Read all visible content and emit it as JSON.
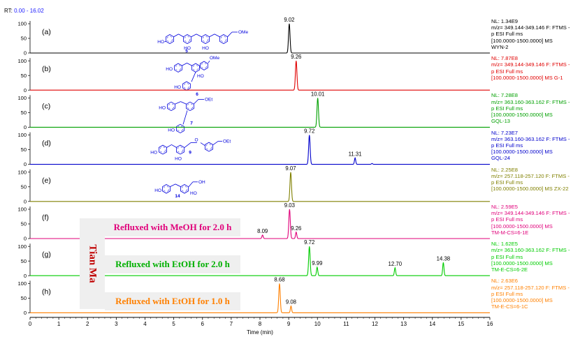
{
  "rt_header": {
    "label": "RT:",
    "range": "0.00 - 16.02"
  },
  "chart_data": {
    "type": "line",
    "xlabel": "Time (min)",
    "xlim": [
      0,
      16
    ],
    "x_ticks": [
      0,
      1,
      2,
      3,
      4,
      5,
      6,
      7,
      8,
      9,
      10,
      11,
      12,
      13,
      14,
      15,
      16
    ],
    "y_ticks": [
      0,
      50,
      100
    ],
    "panels": [
      {
        "label": "(a)",
        "color": "#000000",
        "info": [
          "NL: 1.34E9",
          "m/z= 349.144-349.146 F: FTMS -",
          "p ESI Full ms",
          "[100.0000-1500.0000]  MS",
          "WYN-2"
        ],
        "peaks": [
          {
            "rt": 9.02,
            "height": 100,
            "label": "9.02"
          }
        ]
      },
      {
        "label": "(b)",
        "color": "#e00000",
        "info": [
          "NL: 7.87E8",
          "m/z= 349.144-349.146 F: FTMS -",
          "p ESI Full ms",
          "[100.0000-1500.0000]  MS G-1"
        ],
        "peaks": [
          {
            "rt": 9.26,
            "height": 100,
            "label": "9.26"
          }
        ]
      },
      {
        "label": "(c)",
        "color": "#00a000",
        "info": [
          "NL: 7.28E8",
          "m/z= 363.160-363.162 F: FTMS -",
          "p ESI Full ms",
          "[100.0000-1500.0000]  MS",
          "GQL-13"
        ],
        "peaks": [
          {
            "rt": 10.01,
            "height": 100,
            "label": "10.01"
          }
        ]
      },
      {
        "label": "(d)",
        "color": "#0000cc",
        "info": [
          "NL: 7.23E7",
          "m/z= 363.160-363.162 F: FTMS -",
          "p ESI Full ms",
          "[100.0000-1500.0000]  MS",
          "GQL-24"
        ],
        "peaks": [
          {
            "rt": 9.72,
            "height": 100,
            "label": "9.72"
          },
          {
            "rt": 11.31,
            "height": 22,
            "label": "11.31"
          },
          {
            "rt": 11.9,
            "height": 3,
            "label": ""
          }
        ]
      },
      {
        "label": "(e)",
        "color": "#808000",
        "info": [
          "NL: 2.25E8",
          "m/z= 257.118-257.120 F: FTMS -",
          "p ESI Full ms",
          "[100.0000-1500.0000]  MS ZX-22"
        ],
        "peaks": [
          {
            "rt": 9.07,
            "height": 100,
            "label": "9.07"
          }
        ]
      },
      {
        "label": "(f)",
        "color": "#e0007a",
        "info": [
          "NL: 2.59E5",
          "m/z= 349.144-349.146 F: FTMS -",
          "p ESI Full ms",
          "[100.0000-1500.0000]  MS",
          "TM-M-CS=6-1E"
        ],
        "peaks": [
          {
            "rt": 8.09,
            "height": 12,
            "label": "8.09"
          },
          {
            "rt": 9.03,
            "height": 100,
            "label": "9.03"
          },
          {
            "rt": 9.26,
            "height": 22,
            "label": "9.26"
          }
        ]
      },
      {
        "label": "(g)",
        "color": "#00cc00",
        "info": [
          "NL: 1.62E5",
          "m/z= 363.160-363.162 F: FTMS -",
          "p ESI Full ms",
          "[100.0000-1500.0000]  MS",
          "TM-E-CS=6-2E"
        ],
        "peaks": [
          {
            "rt": 9.72,
            "height": 100,
            "label": "9.72"
          },
          {
            "rt": 9.99,
            "height": 29,
            "label": "9.99"
          },
          {
            "rt": 12.7,
            "height": 27,
            "label": "12.70"
          },
          {
            "rt": 14.38,
            "height": 45,
            "label": "14.38"
          }
        ]
      },
      {
        "label": "(h)",
        "color": "#ff8000",
        "info": [
          "NL: 2.63E6",
          "m/z= 257.118-257.120 F: FTMS -",
          "p ESI Full ms",
          "[100.0000-1500.0000]  MS",
          "TM-E-CS=6-1C"
        ],
        "peaks": [
          {
            "rt": 8.68,
            "height": 100,
            "label": "8.68"
          },
          {
            "rt": 9.08,
            "height": 23,
            "label": "9.08"
          }
        ]
      }
    ],
    "compounds": [
      {
        "panel": 0,
        "number": "5",
        "label": "OMe"
      },
      {
        "panel": 1,
        "number": "6",
        "label": "OMe"
      },
      {
        "panel": 2,
        "number": "7",
        "label": "OEt"
      },
      {
        "panel": 3,
        "number": "9",
        "label": "OEt"
      },
      {
        "panel": 4,
        "number": "14",
        "label": "OH"
      }
    ],
    "structure_text": {
      "hydroxyl": "HO",
      "oxygen": "O"
    },
    "annotations": [
      {
        "panel": 5,
        "text": "Refluxed with MeOH for 2.0 h",
        "color": "#e0007a"
      },
      {
        "panel": 6,
        "text": "Refluxed with EtOH for 2.0 h",
        "color": "#00b000"
      },
      {
        "panel": 7,
        "text": "Refluxed with EtOH for 1.0 h",
        "color": "#ff8000"
      }
    ],
    "sample_label": {
      "text": "Tian Ma",
      "color": "#c00000"
    }
  }
}
